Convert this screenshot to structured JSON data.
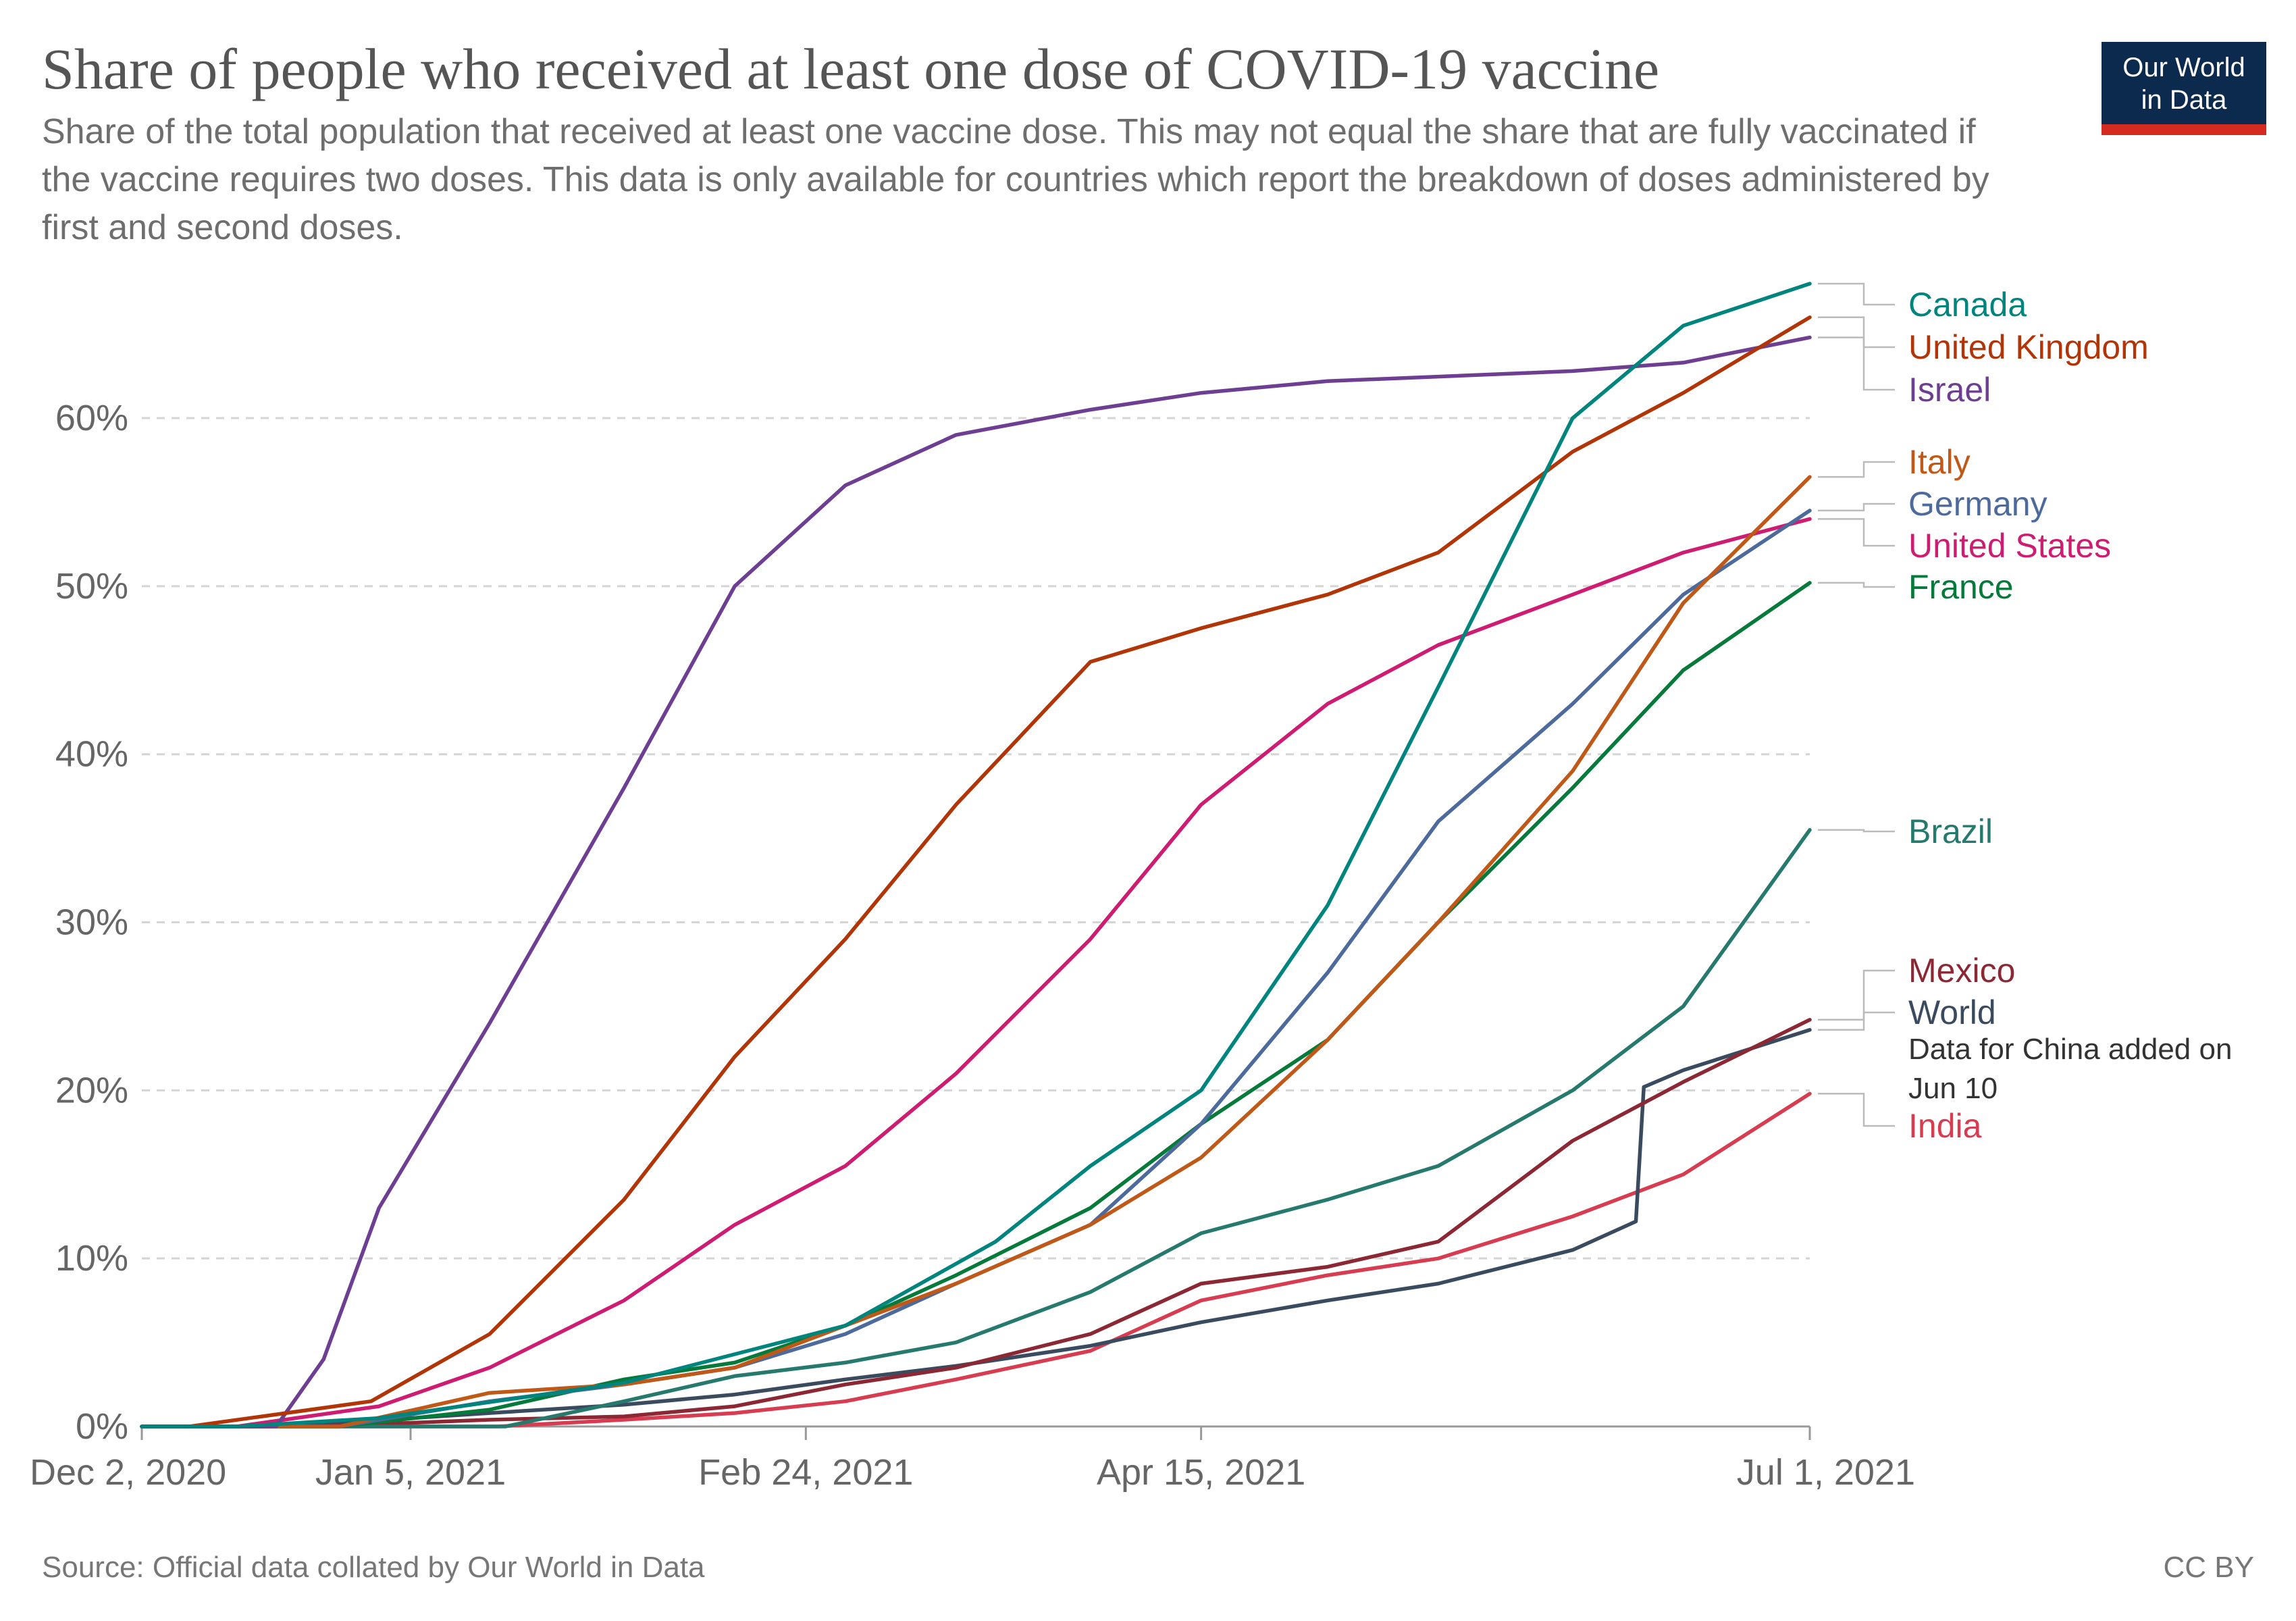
{
  "header": {
    "title": "Share of people who received at least one dose of COVID-19 vaccine",
    "subtitle": "Share of the total population that received at least one vaccine dose. This may not equal the share that are fully vaccinated if the vaccine requires two doses. This data is only available for countries which report the breakdown of doses administered by first and second doses.",
    "logo_line1": "Our World",
    "logo_line2": "in Data"
  },
  "footer": {
    "source": "Source: Official data collated by Our World in Data",
    "license": "CC BY"
  },
  "colors": {
    "logo_background": "#0c2a4e",
    "logo_accent": "#d42b21"
  },
  "chart_data": {
    "type": "line",
    "title": "Share of people who received at least one dose of COVID-19 vaccine",
    "xlabel": "",
    "ylabel": "",
    "x_ticks": [
      "Dec 2, 2020",
      "Jan 5, 2021",
      "Feb 24, 2021",
      "Apr 15, 2021",
      "Jul 1, 2021"
    ],
    "x_range": [
      "Dec 2, 2020",
      "Jul 1, 2021"
    ],
    "y_ticks": [
      "0%",
      "10%",
      "20%",
      "30%",
      "40%",
      "50%",
      "60%"
    ],
    "ylim": [
      0,
      68
    ],
    "y_unit": "%",
    "grid": "horizontal dashed",
    "legend": "right, labels at line ends",
    "annotation": "Data for China added on Jun 10",
    "series": [
      {
        "name": "Canada",
        "color": "#00847e",
        "x": [
          "2020-12-14",
          "2021-01-01",
          "2021-02-01",
          "2021-03-01",
          "2021-03-20",
          "2021-04-01",
          "2021-04-15",
          "2021-05-01",
          "2021-05-15",
          "2021-06-01",
          "2021-06-15",
          "2021-07-01"
        ],
        "y": [
          0,
          0.5,
          2.6,
          6,
          11,
          15.5,
          20,
          31,
          44,
          60,
          65.5,
          68
        ]
      },
      {
        "name": "United Kingdom",
        "color": "#b13507",
        "x": [
          "2020-12-08",
          "2020-12-31",
          "2021-01-15",
          "2021-02-01",
          "2021-02-15",
          "2021-03-01",
          "2021-03-15",
          "2021-04-01",
          "2021-04-15",
          "2021-05-01",
          "2021-05-15",
          "2021-06-01",
          "2021-06-15",
          "2021-07-01"
        ],
        "y": [
          0,
          1.5,
          5.5,
          13.5,
          22,
          29,
          37,
          45.5,
          47.5,
          49.5,
          52,
          58,
          61.5,
          66
        ]
      },
      {
        "name": "Israel",
        "color": "#6d3e91",
        "x": [
          "2020-12-19",
          "2020-12-25",
          "2021-01-01",
          "2021-01-15",
          "2021-02-01",
          "2021-02-15",
          "2021-03-01",
          "2021-03-15",
          "2021-04-01",
          "2021-04-15",
          "2021-05-01",
          "2021-06-01",
          "2021-06-15",
          "2021-07-01"
        ],
        "y": [
          0,
          4,
          13,
          24,
          38,
          50,
          56,
          59,
          60.5,
          61.5,
          62.2,
          62.8,
          63.3,
          64.8
        ]
      },
      {
        "name": "Italy",
        "color": "#c05917",
        "x": [
          "2020-12-27",
          "2021-01-15",
          "2021-02-01",
          "2021-02-15",
          "2021-03-01",
          "2021-03-15",
          "2021-04-01",
          "2021-04-15",
          "2021-05-01",
          "2021-05-15",
          "2021-06-01",
          "2021-06-15",
          "2021-07-01"
        ],
        "y": [
          0,
          2,
          2.5,
          3.5,
          6,
          8.5,
          12,
          16,
          23,
          30,
          39,
          49,
          56.5
        ]
      },
      {
        "name": "Germany",
        "color": "#4c6a9c",
        "x": [
          "2020-12-27",
          "2021-01-15",
          "2021-02-01",
          "2021-02-15",
          "2021-03-01",
          "2021-03-15",
          "2021-04-01",
          "2021-04-15",
          "2021-05-01",
          "2021-05-15",
          "2021-06-01",
          "2021-06-15",
          "2021-07-01"
        ],
        "y": [
          0,
          1.5,
          2.5,
          3.5,
          5.5,
          8.5,
          12,
          18,
          27,
          36,
          43,
          49.5,
          54.5
        ]
      },
      {
        "name": "United States",
        "color": "#ce1c72",
        "x": [
          "2020-12-14",
          "2021-01-01",
          "2021-01-15",
          "2021-02-01",
          "2021-02-15",
          "2021-03-01",
          "2021-03-15",
          "2021-04-01",
          "2021-04-15",
          "2021-05-01",
          "2021-05-15",
          "2021-06-01",
          "2021-06-15",
          "2021-07-01"
        ],
        "y": [
          0,
          1.2,
          3.5,
          7.5,
          12,
          15.5,
          21,
          29,
          37,
          43,
          46.5,
          49.5,
          52,
          54
        ]
      },
      {
        "name": "France",
        "color": "#067a3a",
        "x": [
          "2020-12-27",
          "2021-01-15",
          "2021-02-01",
          "2021-02-15",
          "2021-03-01",
          "2021-03-15",
          "2021-04-01",
          "2021-04-15",
          "2021-05-01",
          "2021-05-15",
          "2021-06-01",
          "2021-06-15",
          "2021-07-01"
        ],
        "y": [
          0,
          1,
          2.8,
          3.8,
          6,
          9,
          13,
          18,
          23,
          30,
          38,
          45,
          50.2
        ]
      },
      {
        "name": "Brazil",
        "color": "#267a6d",
        "x": [
          "2021-01-17",
          "2021-02-01",
          "2021-02-15",
          "2021-03-01",
          "2021-03-15",
          "2021-04-01",
          "2021-04-15",
          "2021-05-01",
          "2021-05-15",
          "2021-06-01",
          "2021-06-15",
          "2021-07-01"
        ],
        "y": [
          0,
          1.5,
          3,
          3.8,
          5,
          8,
          11.5,
          13.5,
          15.5,
          20,
          25,
          35.5
        ]
      },
      {
        "name": "Mexico",
        "color": "#8c2834",
        "x": [
          "2020-12-24",
          "2021-01-15",
          "2021-02-01",
          "2021-02-15",
          "2021-03-01",
          "2021-03-15",
          "2021-04-01",
          "2021-04-15",
          "2021-05-01",
          "2021-05-15",
          "2021-06-01",
          "2021-06-15",
          "2021-07-01"
        ],
        "y": [
          0,
          0.4,
          0.6,
          1.2,
          2.5,
          3.5,
          5.5,
          8.5,
          9.5,
          11,
          17,
          20.5,
          24.2
        ]
      },
      {
        "name": "World",
        "color": "#3a4a5f",
        "x": [
          "2020-12-02",
          "2020-12-20",
          "2021-01-15",
          "2021-02-01",
          "2021-02-15",
          "2021-03-01",
          "2021-03-15",
          "2021-04-01",
          "2021-04-15",
          "2021-05-01",
          "2021-05-15",
          "2021-06-01",
          "2021-06-09",
          "2021-06-10",
          "2021-06-15",
          "2021-07-01"
        ],
        "y": [
          0,
          0,
          0.8,
          1.3,
          1.9,
          2.8,
          3.6,
          4.8,
          6.2,
          7.5,
          8.5,
          10.5,
          12.2,
          20.2,
          21.2,
          23.6
        ]
      },
      {
        "name": "India",
        "color": "#d73c50",
        "x": [
          "2021-01-16",
          "2021-02-01",
          "2021-02-15",
          "2021-03-01",
          "2021-03-15",
          "2021-04-01",
          "2021-04-15",
          "2021-05-01",
          "2021-05-15",
          "2021-06-01",
          "2021-06-15",
          "2021-07-01"
        ],
        "y": [
          0,
          0.4,
          0.8,
          1.5,
          2.8,
          4.5,
          7.5,
          9,
          10,
          12.5,
          15,
          19.8
        ]
      }
    ]
  }
}
